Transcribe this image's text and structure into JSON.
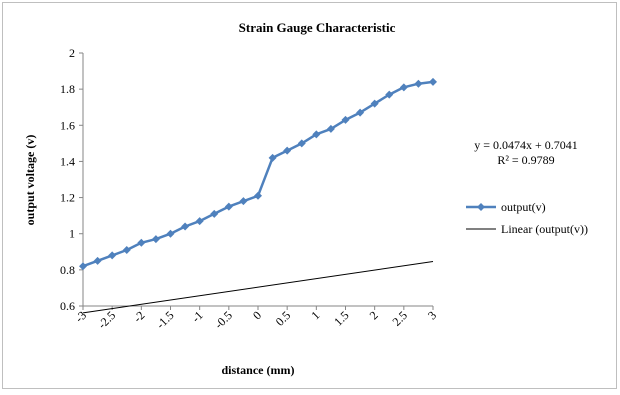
{
  "chart_data": {
    "type": "line",
    "title": "Strain Gauge Characteristic",
    "xlabel": "distance (mm)",
    "ylabel": "output voltage (v)",
    "x_ticks": [
      "-3",
      "-2.5",
      "-2",
      "-1.5",
      "-1",
      "-0.5",
      "0",
      "0.5",
      "1",
      "1.5",
      "2",
      "2.5",
      "3"
    ],
    "y_ticks": [
      "0.6",
      "0.8",
      "1",
      "1.2",
      "1.4",
      "1.6",
      "1.8",
      "2"
    ],
    "xlim": [
      -3,
      3
    ],
    "ylim": [
      0.6,
      2.0
    ],
    "grid": false,
    "legend_position": "right",
    "series": [
      {
        "name": "output(v)",
        "color": "#4f81bd",
        "marker": "diamond",
        "x": [
          -3,
          -2.75,
          -2.5,
          -2.25,
          -2,
          -1.75,
          -1.5,
          -1.25,
          -1,
          -0.75,
          -0.5,
          -0.25,
          0,
          0.25,
          0.5,
          0.75,
          1,
          1.25,
          1.5,
          1.75,
          2,
          2.25,
          2.5,
          2.75,
          3
        ],
        "values": [
          0.82,
          0.85,
          0.88,
          0.91,
          0.95,
          0.97,
          1.0,
          1.04,
          1.07,
          1.11,
          1.15,
          1.18,
          1.21,
          1.42,
          1.46,
          1.5,
          1.55,
          1.58,
          1.63,
          1.67,
          1.72,
          1.77,
          1.81,
          1.83,
          1.84
        ]
      }
    ],
    "trendline": {
      "name": "Linear (output(v))",
      "color": "#000000",
      "slope": 0.0474,
      "intercept": 0.7041,
      "x_range": [
        -3,
        3
      ]
    },
    "annotation": {
      "equation": "y = 0.0474x + 0.7041",
      "r_squared": "R² = 0.9789"
    }
  }
}
